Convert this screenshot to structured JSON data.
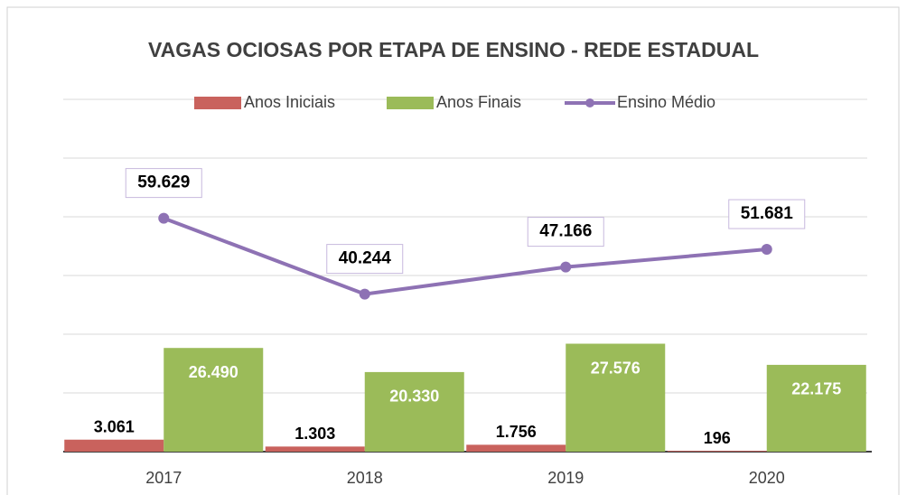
{
  "chart_data": {
    "type": "bar",
    "title": "VAGAS OCIOSAS POR ETAPA DE ENSINO - REDE ESTADUAL",
    "categories": [
      "2017",
      "2018",
      "2019",
      "2020"
    ],
    "series": [
      {
        "name": "Anos Iniciais",
        "type": "bar",
        "color": "#c9625d",
        "values": [
          3061,
          1303,
          1756,
          196
        ],
        "value_labels": [
          "3.061",
          "1.303",
          "1.756",
          "196"
        ]
      },
      {
        "name": "Anos Finais",
        "type": "bar",
        "color": "#9bbb59",
        "values": [
          26490,
          20330,
          27576,
          22175
        ],
        "value_labels": [
          "26.490",
          "20.330",
          "27.576",
          "22.175"
        ]
      },
      {
        "name": "Ensino Médio",
        "type": "line",
        "color": "#8e72b4",
        "values": [
          59629,
          40244,
          47166,
          51681
        ],
        "value_labels": [
          "59.629",
          "40.244",
          "47.166",
          "51.681"
        ]
      }
    ],
    "ylim": [
      0,
      90000
    ],
    "yticks": [
      0,
      15000,
      30000,
      45000,
      60000,
      75000,
      90000
    ],
    "grid": true,
    "legend": "top"
  }
}
